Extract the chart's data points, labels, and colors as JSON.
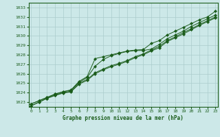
{
  "title": "Graphe pression niveau de la mer (hPa)",
  "bg_color": "#cce8e8",
  "grid_color": "#aacccc",
  "line_color": "#1a5c1a",
  "marker_color": "#1a5c1a",
  "xlim": [
    -0.3,
    23.3
  ],
  "ylim": [
    1022.5,
    1033.5
  ],
  "yticks": [
    1023,
    1024,
    1025,
    1026,
    1027,
    1028,
    1029,
    1030,
    1031,
    1032,
    1033
  ],
  "xticks": [
    0,
    1,
    2,
    3,
    4,
    5,
    6,
    7,
    8,
    9,
    10,
    11,
    12,
    13,
    14,
    15,
    16,
    17,
    18,
    19,
    20,
    21,
    22,
    23
  ],
  "series": [
    [
      1022.8,
      1023.15,
      1023.5,
      1023.85,
      1024.1,
      1024.3,
      1025.2,
      1025.7,
      1027.6,
      1027.8,
      1028.0,
      1028.2,
      1028.4,
      1028.5,
      1028.55,
      1029.2,
      1029.5,
      1030.1,
      1030.5,
      1030.9,
      1031.3,
      1031.7,
      1032.0,
      1032.6
    ],
    [
      1022.8,
      1023.15,
      1023.5,
      1023.85,
      1024.1,
      1024.25,
      1025.1,
      1025.6,
      1026.8,
      1027.5,
      1027.9,
      1028.15,
      1028.35,
      1028.45,
      1028.45,
      1028.6,
      1029.1,
      1029.7,
      1030.1,
      1030.5,
      1031.0,
      1031.4,
      1031.8,
      1032.2
    ],
    [
      1022.6,
      1023.0,
      1023.4,
      1023.75,
      1024.0,
      1024.15,
      1025.0,
      1025.4,
      1026.1,
      1026.5,
      1026.85,
      1027.1,
      1027.4,
      1027.8,
      1028.1,
      1028.5,
      1028.9,
      1029.5,
      1029.9,
      1030.35,
      1030.75,
      1031.2,
      1031.6,
      1032.0
    ],
    [
      1022.6,
      1023.0,
      1023.4,
      1023.7,
      1023.95,
      1024.1,
      1024.9,
      1025.3,
      1026.0,
      1026.4,
      1026.75,
      1027.0,
      1027.3,
      1027.7,
      1028.0,
      1028.4,
      1028.75,
      1029.4,
      1029.8,
      1030.2,
      1030.65,
      1031.1,
      1031.5,
      1031.9
    ]
  ]
}
